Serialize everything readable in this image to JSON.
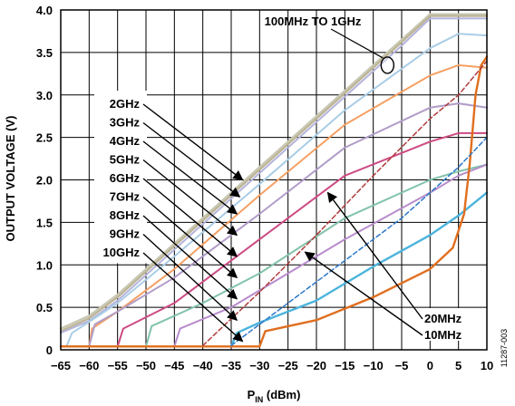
{
  "chart_data": {
    "type": "line",
    "xlabel_main": "P",
    "xlabel_sub": "IN",
    "xlabel_unit": " (dBm)",
    "ylabel": "OUTPUT VOLTAGE (V)",
    "xlim": [
      -65,
      10
    ],
    "ylim": [
      0,
      4.0
    ],
    "xticks": [
      -65,
      -60,
      -55,
      -50,
      -45,
      -40,
      -35,
      -30,
      -25,
      -20,
      -15,
      -10,
      -5,
      0,
      5,
      10
    ],
    "xtick_labels": [
      "−65",
      "−60",
      "−55",
      "−50",
      "−45",
      "−40",
      "−35",
      "−30",
      "−25",
      "−20",
      "−15",
      "−10",
      "−5",
      "0",
      "5",
      "10"
    ],
    "yticks": [
      0,
      0.5,
      1.0,
      1.5,
      2.0,
      2.5,
      3.0,
      3.5,
      4.0
    ],
    "ytick_labels": [
      "0",
      "0.5",
      "1.0",
      "1.5",
      "2.0",
      "2.5",
      "3.0",
      "3.5",
      "4.0"
    ],
    "grid": true,
    "figure_id": "11287-003",
    "series": [
      {
        "color": "#c8c8b4",
        "width": 2.4,
        "points": [
          [
            -65,
            0.25
          ],
          [
            -60,
            0.4
          ],
          [
            -55,
            0.65
          ],
          [
            -45,
            1.25
          ],
          [
            -30,
            2.15
          ],
          [
            -15,
            3.05
          ],
          [
            -5,
            3.65
          ],
          [
            0,
            3.95
          ],
          [
            10,
            3.95
          ]
        ]
      },
      {
        "color": "#bdb496",
        "width": 2.2,
        "points": [
          [
            -65,
            0.22
          ],
          [
            -60,
            0.37
          ],
          [
            -55,
            0.62
          ],
          [
            -45,
            1.22
          ],
          [
            -30,
            2.12
          ],
          [
            -15,
            3.02
          ],
          [
            -5,
            3.62
          ],
          [
            0,
            3.93
          ],
          [
            10,
            3.93
          ]
        ]
      },
      {
        "color": "#b4b4dc",
        "width": 2.0,
        "points": [
          [
            -65,
            0.2
          ],
          [
            -60,
            0.34
          ],
          [
            -55,
            0.58
          ],
          [
            -45,
            1.18
          ],
          [
            -30,
            2.08
          ],
          [
            -15,
            2.98
          ],
          [
            -5,
            3.58
          ],
          [
            0,
            3.9
          ],
          [
            10,
            3.9
          ]
        ]
      },
      {
        "color": "#aacde6",
        "width": 2.0,
        "points": [
          [
            -64,
            0.04
          ],
          [
            -63,
            0.2
          ],
          [
            -60,
            0.33
          ],
          [
            -55,
            0.55
          ],
          [
            -45,
            1.1
          ],
          [
            -30,
            1.95
          ],
          [
            -15,
            2.82
          ],
          [
            0,
            3.55
          ],
          [
            5,
            3.72
          ],
          [
            10,
            3.7
          ]
        ]
      },
      {
        "color": "#f5a064",
        "width": 2.0,
        "points": [
          [
            -60,
            0.04
          ],
          [
            -59.5,
            0.25
          ],
          [
            -55,
            0.45
          ],
          [
            -45,
            0.95
          ],
          [
            -30,
            1.82
          ],
          [
            -15,
            2.65
          ],
          [
            0,
            3.23
          ],
          [
            5,
            3.35
          ],
          [
            10,
            3.32
          ]
        ]
      },
      {
        "color": "#b09cc8",
        "width": 2.0,
        "points": [
          [
            -65,
            0.04
          ],
          [
            -60,
            0.04
          ],
          [
            -59,
            0.3
          ],
          [
            -55,
            0.45
          ],
          [
            -45,
            0.85
          ],
          [
            -30,
            1.6
          ],
          [
            -15,
            2.38
          ],
          [
            0,
            2.85
          ],
          [
            5,
            2.9
          ],
          [
            10,
            2.85
          ]
        ]
      },
      {
        "color": "#cd4b82",
        "width": 2.0,
        "points": [
          [
            -55,
            0.04
          ],
          [
            -54,
            0.25
          ],
          [
            -45,
            0.55
          ],
          [
            -30,
            1.3
          ],
          [
            -15,
            2.05
          ],
          [
            0,
            2.45
          ],
          [
            5,
            2.55
          ],
          [
            10,
            2.55
          ]
        ]
      },
      {
        "color": "#82c3aa",
        "width": 2.0,
        "points": [
          [
            -65,
            0.04
          ],
          [
            -50,
            0.04
          ],
          [
            -49,
            0.28
          ],
          [
            -40,
            0.55
          ],
          [
            -30,
            0.9
          ],
          [
            -15,
            1.55
          ],
          [
            0,
            2.0
          ],
          [
            5,
            2.1
          ],
          [
            10,
            2.18
          ]
        ]
      },
      {
        "color": "#b88ccc",
        "width": 2.0,
        "points": [
          [
            -45,
            0.04
          ],
          [
            -44,
            0.25
          ],
          [
            -35,
            0.5
          ],
          [
            -25,
            0.9
          ],
          [
            -15,
            1.3
          ],
          [
            0,
            1.85
          ],
          [
            5,
            2.05
          ],
          [
            10,
            2.18
          ]
        ]
      },
      {
        "color": "#4bb4dc",
        "width": 2.4,
        "points": [
          [
            -35,
            0.04
          ],
          [
            -34,
            0.2
          ],
          [
            -30,
            0.32
          ],
          [
            -20,
            0.58
          ],
          [
            -10,
            0.98
          ],
          [
            0,
            1.35
          ],
          [
            5,
            1.58
          ],
          [
            10,
            1.85
          ]
        ]
      },
      {
        "color": "#e06e1e",
        "width": 2.4,
        "points": [
          [
            -65,
            0.04
          ],
          [
            -30,
            0.04
          ],
          [
            -29,
            0.22
          ],
          [
            -20,
            0.35
          ],
          [
            -10,
            0.62
          ],
          [
            0,
            0.95
          ],
          [
            4,
            1.2
          ],
          [
            6,
            1.6
          ],
          [
            7,
            2.2
          ],
          [
            8,
            3.0
          ],
          [
            9,
            3.35
          ],
          [
            10,
            3.45
          ]
        ]
      },
      {
        "color": "#b03c3c",
        "width": 1.5,
        "dash": "5,3",
        "points": [
          [
            -40,
            0.05
          ],
          [
            -30,
            0.68
          ],
          [
            -20,
            1.35
          ],
          [
            -10,
            2.05
          ],
          [
            0,
            2.72
          ],
          [
            5,
            3.0
          ],
          [
            10,
            3.4
          ]
        ]
      },
      {
        "color": "#2d78c8",
        "width": 1.5,
        "dash": "5,3",
        "points": [
          [
            -35,
            0.05
          ],
          [
            -25,
            0.55
          ],
          [
            -15,
            1.05
          ],
          [
            -5,
            1.55
          ],
          [
            5,
            2.15
          ],
          [
            10,
            2.5
          ]
        ]
      }
    ],
    "annotations": {
      "top_label": "100MHz TO 1GHz",
      "freq_labels": [
        "2GHz",
        "3GHz",
        "4GHz",
        "5GHz",
        "6GHz",
        "7GHz",
        "8GHz",
        "9GHz",
        "10GHz"
      ],
      "freq_targets": [
        [
          -33,
          2.0
        ],
        [
          -33.5,
          1.8
        ],
        [
          -34,
          1.6
        ],
        [
          -34,
          1.35
        ],
        [
          -34,
          1.1
        ],
        [
          -34,
          0.85
        ],
        [
          -34,
          0.6
        ],
        [
          -34,
          0.35
        ],
        [
          -33,
          0.1
        ]
      ],
      "low_labels": [
        "20MHz",
        "10MHz"
      ],
      "low_targets": [
        [
          -18,
          1.85
        ],
        [
          -22,
          1.15
        ]
      ],
      "ellipse_at": [
        -7.5,
        3.35
      ]
    }
  }
}
